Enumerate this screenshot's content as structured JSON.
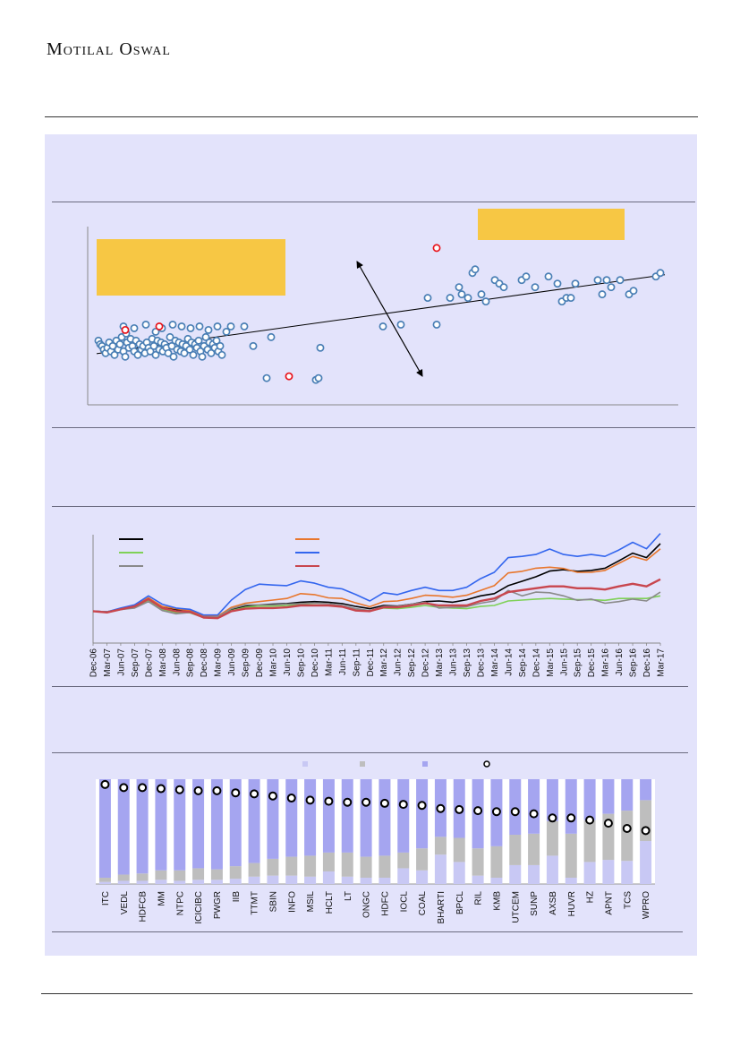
{
  "header": {
    "brand": "Motilal Oswal"
  },
  "colors": {
    "panel_bg": "#e3e3fb",
    "callout": "#f7c744",
    "scatter_point": "#4a7fb5",
    "scatter_highlight": "#e8141c",
    "black": "#000000",
    "orange": "#e8762c",
    "green": "#7fd157",
    "blue": "#3366ee",
    "grey": "#8a8a8a",
    "red": "#c8464e",
    "bar_light": "#c8c8f4",
    "bar_mid": "#bebebe",
    "bar_dark": "#a5a5f0"
  },
  "chart_data": [
    {
      "type": "scatter",
      "trendline": true,
      "series": [
        {
          "name": "",
          "points": [
            [
              1.2,
              36
            ],
            [
              1.4,
              34
            ],
            [
              1.6,
              33
            ],
            [
              1.8,
              31
            ],
            [
              2.0,
              29
            ],
            [
              2.2,
              32
            ],
            [
              2.4,
              35
            ],
            [
              2.6,
              30
            ],
            [
              2.8,
              33
            ],
            [
              3.0,
              28
            ],
            [
              3.2,
              36
            ],
            [
              3.4,
              31
            ],
            [
              3.6,
              34
            ],
            [
              3.8,
              38
            ],
            [
              4.0,
              30
            ],
            [
              4.2,
              27
            ],
            [
              4.4,
              35
            ],
            [
              4.6,
              32
            ],
            [
              4.8,
              37
            ],
            [
              5.0,
              33
            ],
            [
              5.2,
              30
            ],
            [
              5.4,
              36
            ],
            [
              5.6,
              28
            ],
            [
              5.8,
              34
            ],
            [
              6.0,
              31
            ],
            [
              6.2,
              33
            ],
            [
              6.4,
              29
            ],
            [
              6.6,
              35
            ],
            [
              6.8,
              32
            ],
            [
              7.0,
              30
            ],
            [
              7.2,
              37
            ],
            [
              7.4,
              33
            ],
            [
              7.6,
              28
            ],
            [
              7.8,
              36
            ],
            [
              8.0,
              31
            ],
            [
              8.2,
              35
            ],
            [
              8.4,
              30
            ],
            [
              8.6,
              34
            ],
            [
              8.8,
              32
            ],
            [
              9.0,
              29
            ],
            [
              9.2,
              38
            ],
            [
              9.4,
              33
            ],
            [
              9.6,
              27
            ],
            [
              9.8,
              36
            ],
            [
              10.0,
              31
            ],
            [
              10.2,
              35
            ],
            [
              10.4,
              30
            ],
            [
              10.6,
              34
            ],
            [
              10.8,
              29
            ],
            [
              11.0,
              33
            ],
            [
              11.2,
              37
            ],
            [
              11.4,
              31
            ],
            [
              11.6,
              35
            ],
            [
              11.8,
              28
            ],
            [
              12.0,
              34
            ],
            [
              12.2,
              32
            ],
            [
              12.4,
              36
            ],
            [
              12.6,
              30
            ],
            [
              12.8,
              27
            ],
            [
              13.0,
              33
            ],
            [
              13.2,
              38
            ],
            [
              13.4,
              31
            ],
            [
              13.6,
              35
            ],
            [
              13.8,
              29
            ],
            [
              14.0,
              34
            ],
            [
              14.2,
              32
            ],
            [
              14.4,
              36
            ],
            [
              14.6,
              30
            ],
            [
              14.8,
              33
            ],
            [
              15.0,
              28
            ],
            [
              4.0,
              44
            ],
            [
              4.3,
              40
            ],
            [
              5.2,
              43
            ],
            [
              6.5,
              45
            ],
            [
              7.6,
              41
            ],
            [
              8.3,
              43
            ],
            [
              9.5,
              45
            ],
            [
              10.5,
              44
            ],
            [
              11.5,
              43
            ],
            [
              12.5,
              44
            ],
            [
              13.5,
              42
            ],
            [
              14.5,
              44
            ],
            [
              15.5,
              41
            ],
            [
              16.0,
              44
            ],
            [
              17.5,
              44
            ],
            [
              18.5,
              33
            ],
            [
              20.0,
              15
            ],
            [
              25.5,
              14
            ],
            [
              25.8,
              15
            ],
            [
              26.0,
              32
            ],
            [
              33.0,
              44
            ],
            [
              35.0,
              45
            ],
            [
              38.0,
              60
            ],
            [
              39.0,
              45
            ],
            [
              41.5,
              66
            ],
            [
              41.8,
              62
            ],
            [
              42.5,
              60
            ],
            [
              43.0,
              74
            ],
            [
              43.3,
              76
            ],
            [
              44.0,
              62
            ],
            [
              44.5,
              58
            ],
            [
              45.5,
              70
            ],
            [
              46.0,
              68
            ],
            [
              46.5,
              66
            ],
            [
              48.5,
              70
            ],
            [
              49.0,
              72
            ],
            [
              50.0,
              66
            ],
            [
              51.5,
              72
            ],
            [
              52.5,
              68
            ],
            [
              53.0,
              58
            ],
            [
              53.5,
              60
            ],
            [
              54.0,
              60
            ],
            [
              54.5,
              68
            ],
            [
              57.0,
              70
            ],
            [
              57.5,
              62
            ],
            [
              58.0,
              70
            ],
            [
              58.5,
              66
            ],
            [
              59.5,
              70
            ],
            [
              60.5,
              62
            ],
            [
              61.0,
              64
            ],
            [
              63.5,
              72
            ],
            [
              64.0,
              74
            ],
            [
              20.5,
              38
            ],
            [
              40.5,
              60
            ]
          ]
        },
        {
          "name": "",
          "highlight": true,
          "points": [
            [
              4.2,
              42
            ],
            [
              8.0,
              44
            ],
            [
              22.5,
              16
            ],
            [
              39.0,
              88
            ]
          ]
        }
      ]
    },
    {
      "type": "line",
      "x": [
        "Dec-06",
        "Mar-07",
        "Jun-07",
        "Sep-07",
        "Dec-07",
        "Mar-08",
        "Jun-08",
        "Sep-08",
        "Dec-08",
        "Mar-09",
        "Jun-09",
        "Sep-09",
        "Dec-09",
        "Mar-10",
        "Jun-10",
        "Sep-10",
        "Dec-10",
        "Mar-11",
        "Jun-11",
        "Sep-11",
        "Dec-11",
        "Mar-12",
        "Jun-12",
        "Sep-12",
        "Dec-12",
        "Mar-13",
        "Jun-13",
        "Sep-13",
        "Dec-13",
        "Mar-14",
        "Jun-14",
        "Sep-14",
        "Dec-14",
        "Mar-15",
        "Jun-15",
        "Sep-15",
        "Dec-15",
        "Mar-16",
        "Jun-16",
        "Sep-16",
        "Dec-16",
        "Mar-17"
      ],
      "ylim": [
        0,
        340
      ],
      "series": [
        {
          "name": "",
          "color": "#000000",
          "values": [
            100,
            98,
            108,
            115,
            140,
            112,
            105,
            100,
            83,
            82,
            105,
            115,
            120,
            122,
            124,
            128,
            130,
            128,
            124,
            115,
            108,
            118,
            116,
            122,
            130,
            132,
            128,
            136,
            148,
            155,
            180,
            194,
            208,
            226,
            230,
            225,
            228,
            235,
            258,
            282,
            268,
            312
          ]
        },
        {
          "name": "",
          "color": "#e8762c",
          "values": [
            100,
            97,
            108,
            118,
            142,
            115,
            108,
            102,
            85,
            84,
            112,
            125,
            130,
            135,
            140,
            155,
            152,
            142,
            140,
            126,
            114,
            130,
            132,
            140,
            150,
            148,
            144,
            150,
            165,
            180,
            220,
            225,
            235,
            238,
            234,
            222,
            222,
            228,
            250,
            272,
            260,
            296
          ]
        },
        {
          "name": "",
          "color": "#7fd157",
          "values": [
            100,
            96,
            105,
            112,
            135,
            105,
            96,
            95,
            80,
            82,
            102,
            112,
            116,
            116,
            118,
            122,
            120,
            118,
            114,
            104,
            100,
            110,
            108,
            112,
            118,
            112,
            110,
            108,
            115,
            118,
            132,
            135,
            138,
            140,
            138,
            136,
            136,
            134,
            140,
            140,
            140,
            148
          ]
        },
        {
          "name": "",
          "color": "#3366ee",
          "values": [
            100,
            98,
            110,
            120,
            148,
            122,
            110,
            106,
            88,
            88,
            135,
            168,
            185,
            182,
            180,
            195,
            188,
            175,
            170,
            152,
            132,
            158,
            152,
            165,
            175,
            165,
            165,
            175,
            202,
            222,
            268,
            272,
            278,
            295,
            278,
            272,
            278,
            272,
            292,
            316,
            296,
            344
          ]
        },
        {
          "name": "",
          "color": "#8a8a8a",
          "values": [
            100,
            98,
            105,
            110,
            130,
            102,
            92,
            96,
            82,
            82,
            108,
            120,
            120,
            120,
            122,
            124,
            126,
            124,
            118,
            108,
            102,
            115,
            115,
            122,
            128,
            110,
            112,
            114,
            125,
            132,
            165,
            148,
            160,
            158,
            148,
            134,
            138,
            125,
            130,
            138,
            132,
            160
          ]
        },
        {
          "name": "",
          "color": "#c8464e",
          "values": [
            100,
            96,
            106,
            115,
            138,
            110,
            100,
            98,
            80,
            78,
            100,
            108,
            110,
            110,
            112,
            118,
            118,
            118,
            114,
            102,
            100,
            112,
            112,
            118,
            125,
            118,
            118,
            118,
            132,
            140,
            160,
            166,
            172,
            178,
            178,
            172,
            172,
            168,
            178,
            186,
            178,
            200
          ]
        }
      ]
    },
    {
      "type": "bar",
      "stacked": true,
      "categories": [
        "ITC",
        "VEDL",
        "HDFCB",
        "MM",
        "NTPC",
        "ICICIBC",
        "PWGR",
        "IIB",
        "TTMT",
        "SBIN",
        "INFO",
        "MSIL",
        "HCLT",
        "LT",
        "ONGC",
        "HDFC",
        "IOCL",
        "COAL",
        "BHARTI",
        "BPCL",
        "RIL",
        "KMB",
        "UTCEM",
        "SUNP",
        "AXSB",
        "HUVR",
        "HZ",
        "APNT",
        "TCS",
        "WPRO"
      ],
      "ylim": [
        0,
        100
      ],
      "series": [
        {
          "name": "",
          "color": "#c8c8f4",
          "values": [
            2,
            3,
            3,
            4,
            3,
            4,
            4,
            5,
            7,
            8,
            8,
            7,
            12,
            7,
            6,
            6,
            15,
            13,
            28,
            21,
            8,
            6,
            18,
            18,
            27,
            6,
            21,
            23,
            22,
            41
          ]
        },
        {
          "name": "",
          "color": "#bebebe",
          "values": [
            4,
            6,
            7,
            9,
            10,
            11,
            10,
            12,
            13,
            16,
            18,
            20,
            18,
            23,
            20,
            21,
            15,
            21,
            17,
            23,
            26,
            30,
            29,
            30,
            33,
            42,
            40,
            44,
            48,
            39
          ]
        },
        {
          "name": "",
          "color": "#a5a5f0",
          "values": [
            94,
            91,
            90,
            87,
            87,
            85,
            86,
            83,
            80,
            76,
            74,
            73,
            70,
            70,
            74,
            73,
            70,
            66,
            55,
            56,
            66,
            64,
            53,
            52,
            40,
            52,
            39,
            33,
            30,
            20
          ]
        }
      ],
      "markers": {
        "name": "",
        "values": [
          95,
          92,
          92,
          91,
          90,
          89,
          89,
          87,
          86,
          84,
          82,
          80,
          79,
          78,
          78,
          77,
          76,
          75,
          72,
          71,
          70,
          69,
          69,
          67,
          63,
          63,
          61,
          58,
          53,
          51
        ]
      }
    }
  ]
}
